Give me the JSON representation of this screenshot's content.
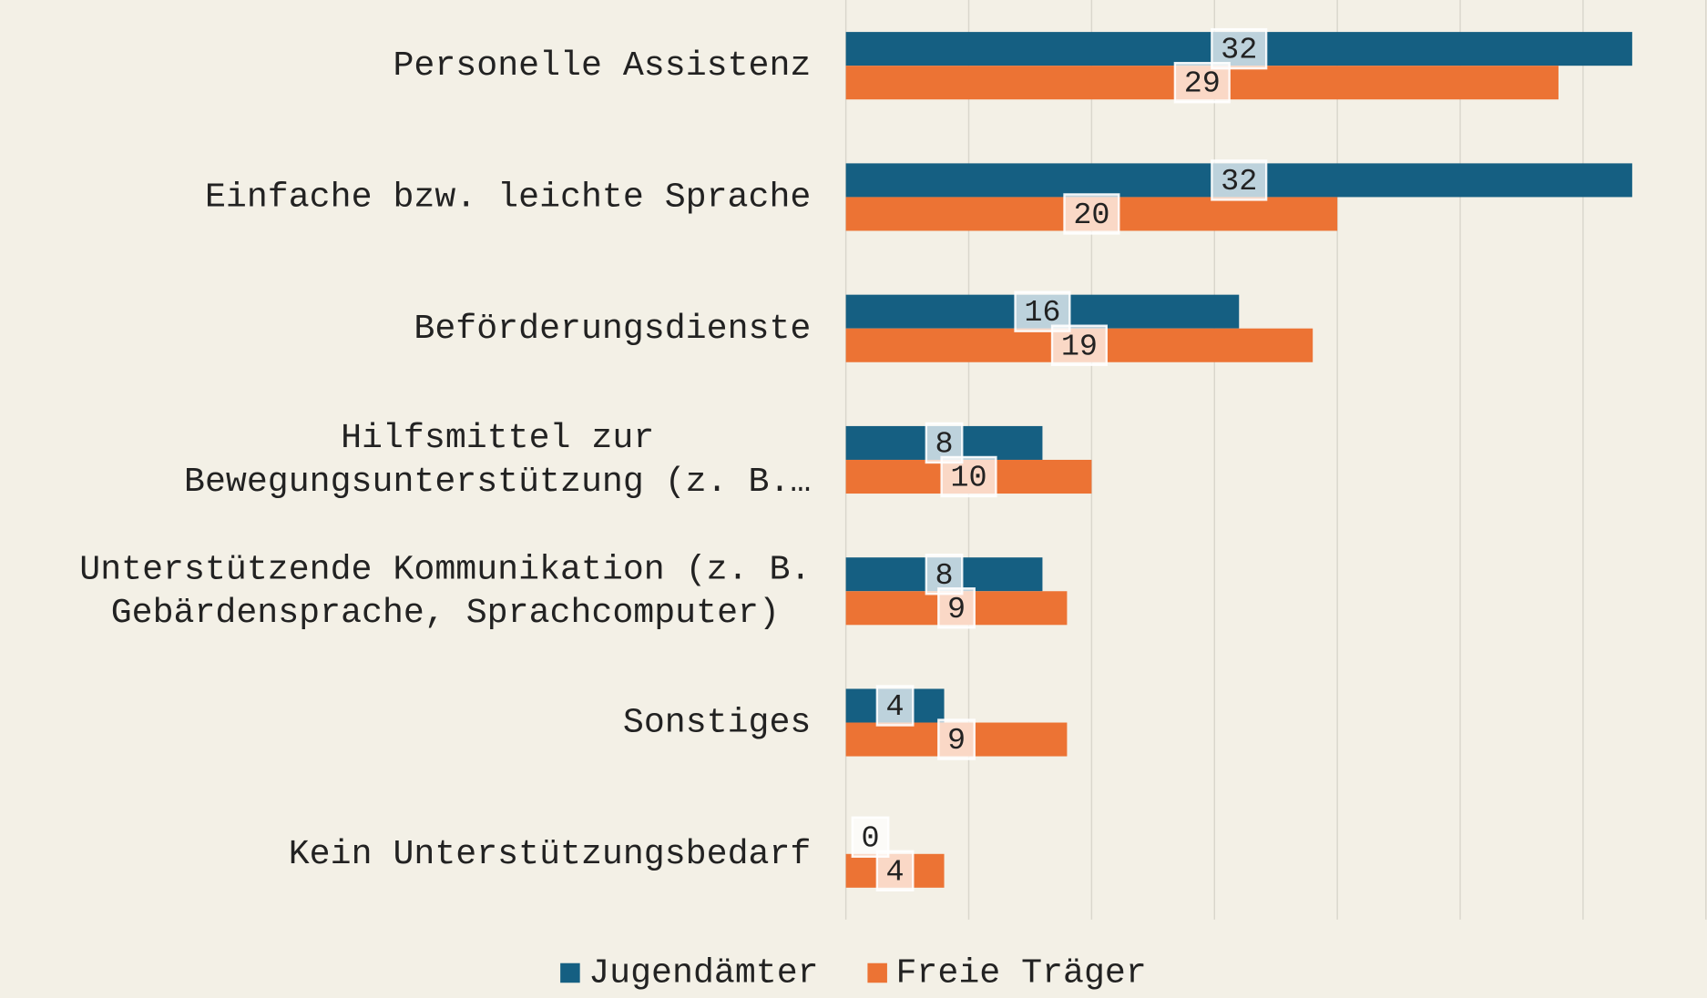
{
  "chart_data": {
    "type": "hbar",
    "categories": [
      "Personelle Assistenz",
      "Einfache bzw. leichte Sprache",
      "Beförderungsdienste",
      "Hilfsmittel zur Bewegungsunterstützung (z. B.…",
      "Unterstützende Kommunikation (z. B. Gebärdensprache, Sprachcomputer)",
      "Sonstiges",
      "Kein Unterstützungsbedarf"
    ],
    "series": [
      {
        "name": "Jugendämter",
        "color": "#155f82",
        "values": [
          32,
          32,
          16,
          8,
          8,
          4,
          0
        ]
      },
      {
        "name": "Freie Träger",
        "color": "#ec7334",
        "values": [
          29,
          20,
          19,
          10,
          9,
          9,
          4
        ]
      }
    ],
    "xlim": [
      0,
      35
    ],
    "xticks": [
      0,
      5,
      10,
      15,
      20,
      25,
      30,
      35
    ],
    "grid": true,
    "legend": "bottom"
  }
}
